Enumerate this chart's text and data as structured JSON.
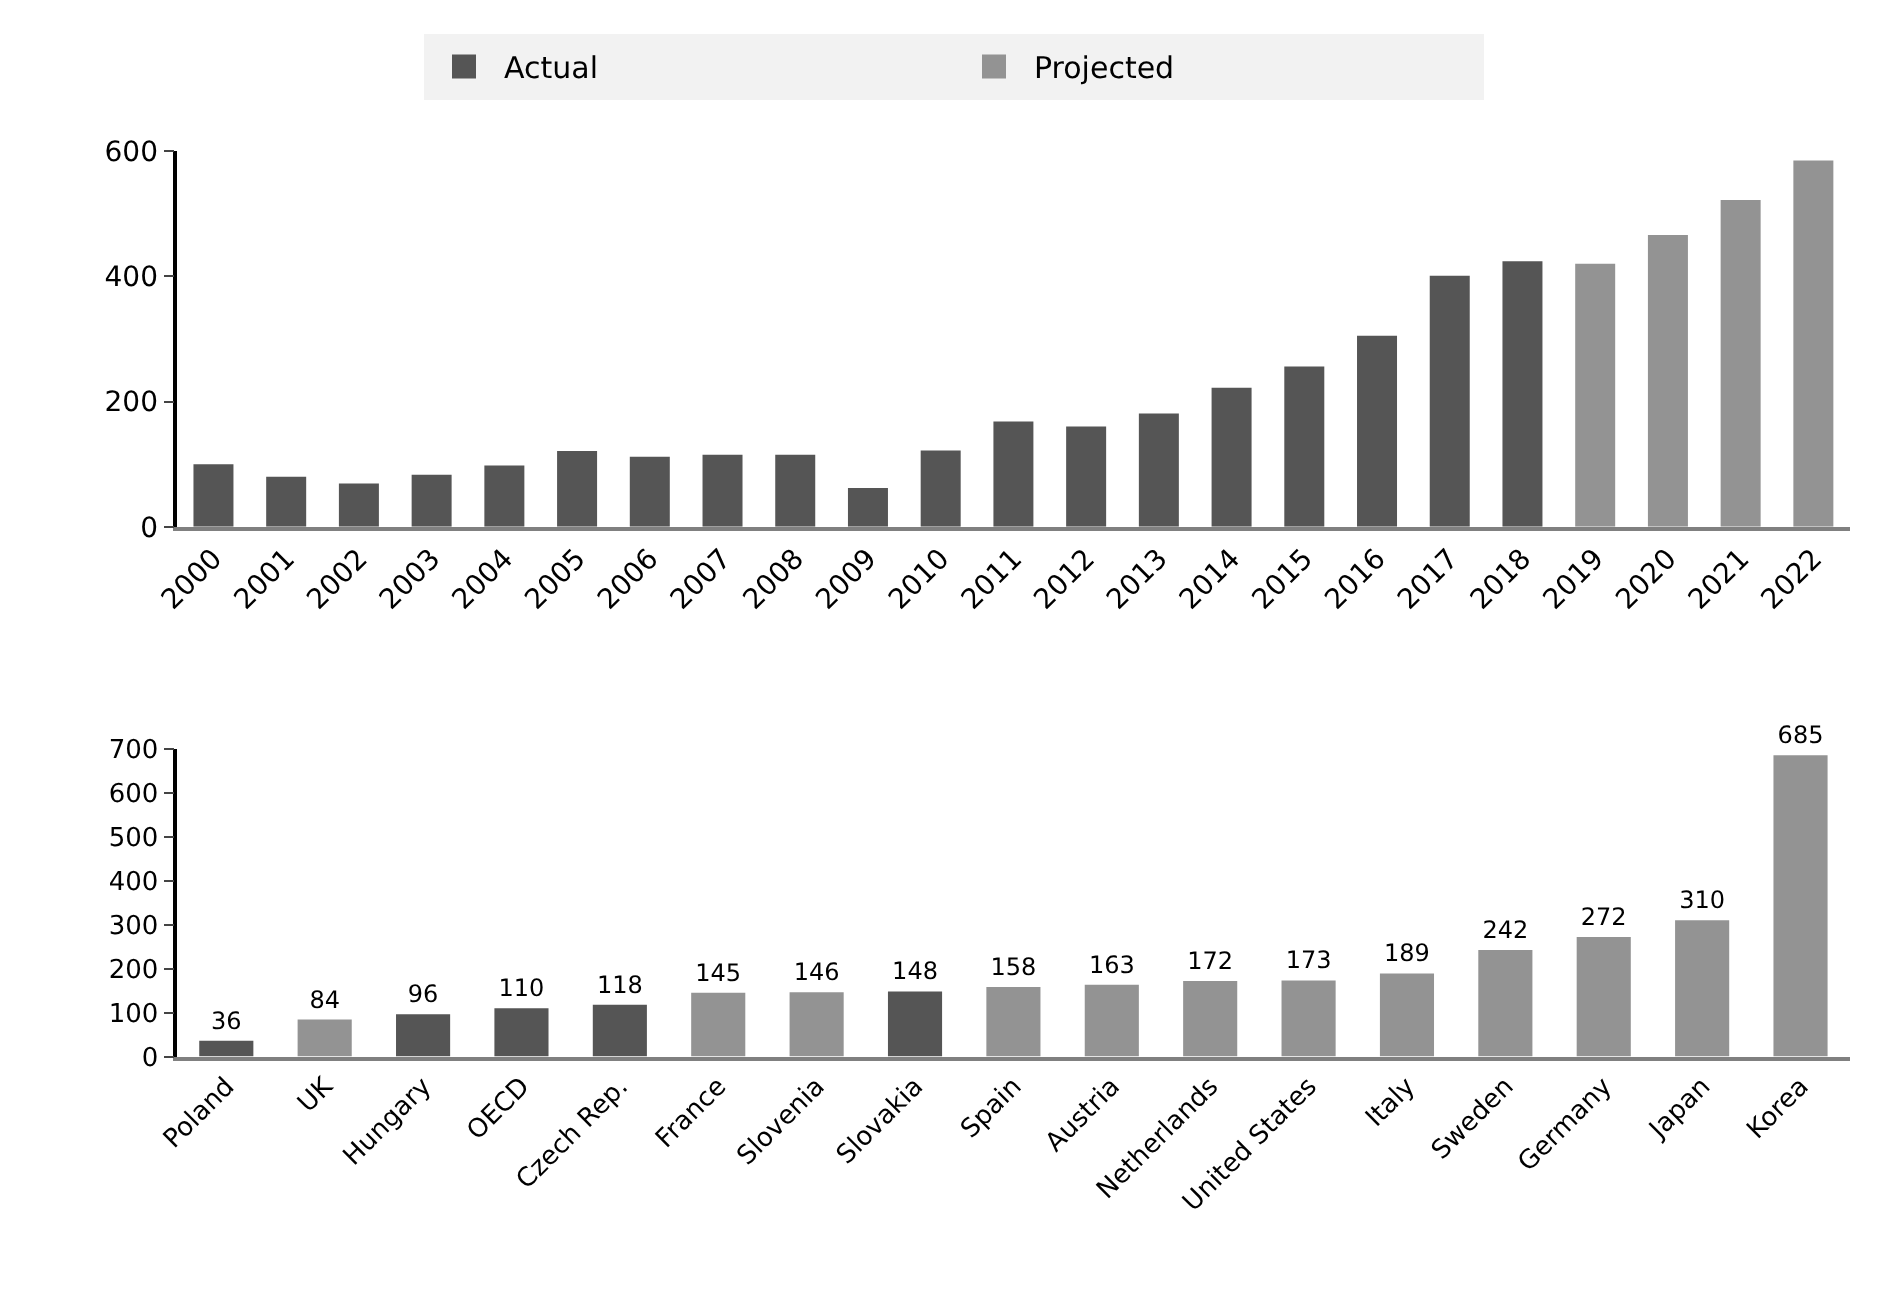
{
  "chart_data": [
    {
      "type": "bar",
      "categories": [
        "2000",
        "2001",
        "2002",
        "2003",
        "2004",
        "2005",
        "2006",
        "2007",
        "2008",
        "2009",
        "2010",
        "2011",
        "2012",
        "2013",
        "2014",
        "2015",
        "2016",
        "2017",
        "2018",
        "2019",
        "2020",
        "2021",
        "2022"
      ],
      "stacked": true,
      "legend": "top",
      "ylim": [
        0,
        600
      ],
      "yticks": [
        0,
        200,
        400,
        600
      ],
      "series": [
        {
          "name": "Actual",
          "color": "#555555",
          "values": [
            100,
            80,
            69,
            83,
            98,
            121,
            112,
            115,
            115,
            62,
            122,
            168,
            160,
            181,
            222,
            256,
            305,
            401,
            424,
            null,
            null,
            null,
            null
          ]
        },
        {
          "name": "Projected",
          "color": "#939393",
          "values": [
            null,
            null,
            null,
            null,
            null,
            null,
            null,
            null,
            null,
            null,
            null,
            null,
            null,
            null,
            null,
            null,
            null,
            null,
            null,
            420,
            466,
            522,
            585
          ]
        }
      ]
    },
    {
      "type": "bar",
      "categories": [
        "Poland",
        "UK",
        "Hungary",
        "OECD",
        "Czech Rep.",
        "France",
        "Slovenia",
        "Slovakia",
        "Spain",
        "Austria",
        "Netherlands",
        "United States",
        "Italy",
        "Sweden",
        "Germany",
        "Japan",
        "Korea"
      ],
      "values": [
        36,
        84,
        96,
        110,
        118,
        145,
        146,
        148,
        158,
        163,
        172,
        173,
        189,
        242,
        272,
        310,
        685
      ],
      "colors": [
        "#555555",
        "#939393",
        "#555555",
        "#555555",
        "#555555",
        "#939393",
        "#939393",
        "#555555",
        "#939393",
        "#939393",
        "#939393",
        "#939393",
        "#939393",
        "#939393",
        "#939393",
        "#939393",
        "#939393"
      ],
      "data_labels": true,
      "ylim": [
        0,
        700
      ],
      "yticks": [
        0,
        100,
        200,
        300,
        400,
        500,
        600,
        700
      ]
    }
  ]
}
